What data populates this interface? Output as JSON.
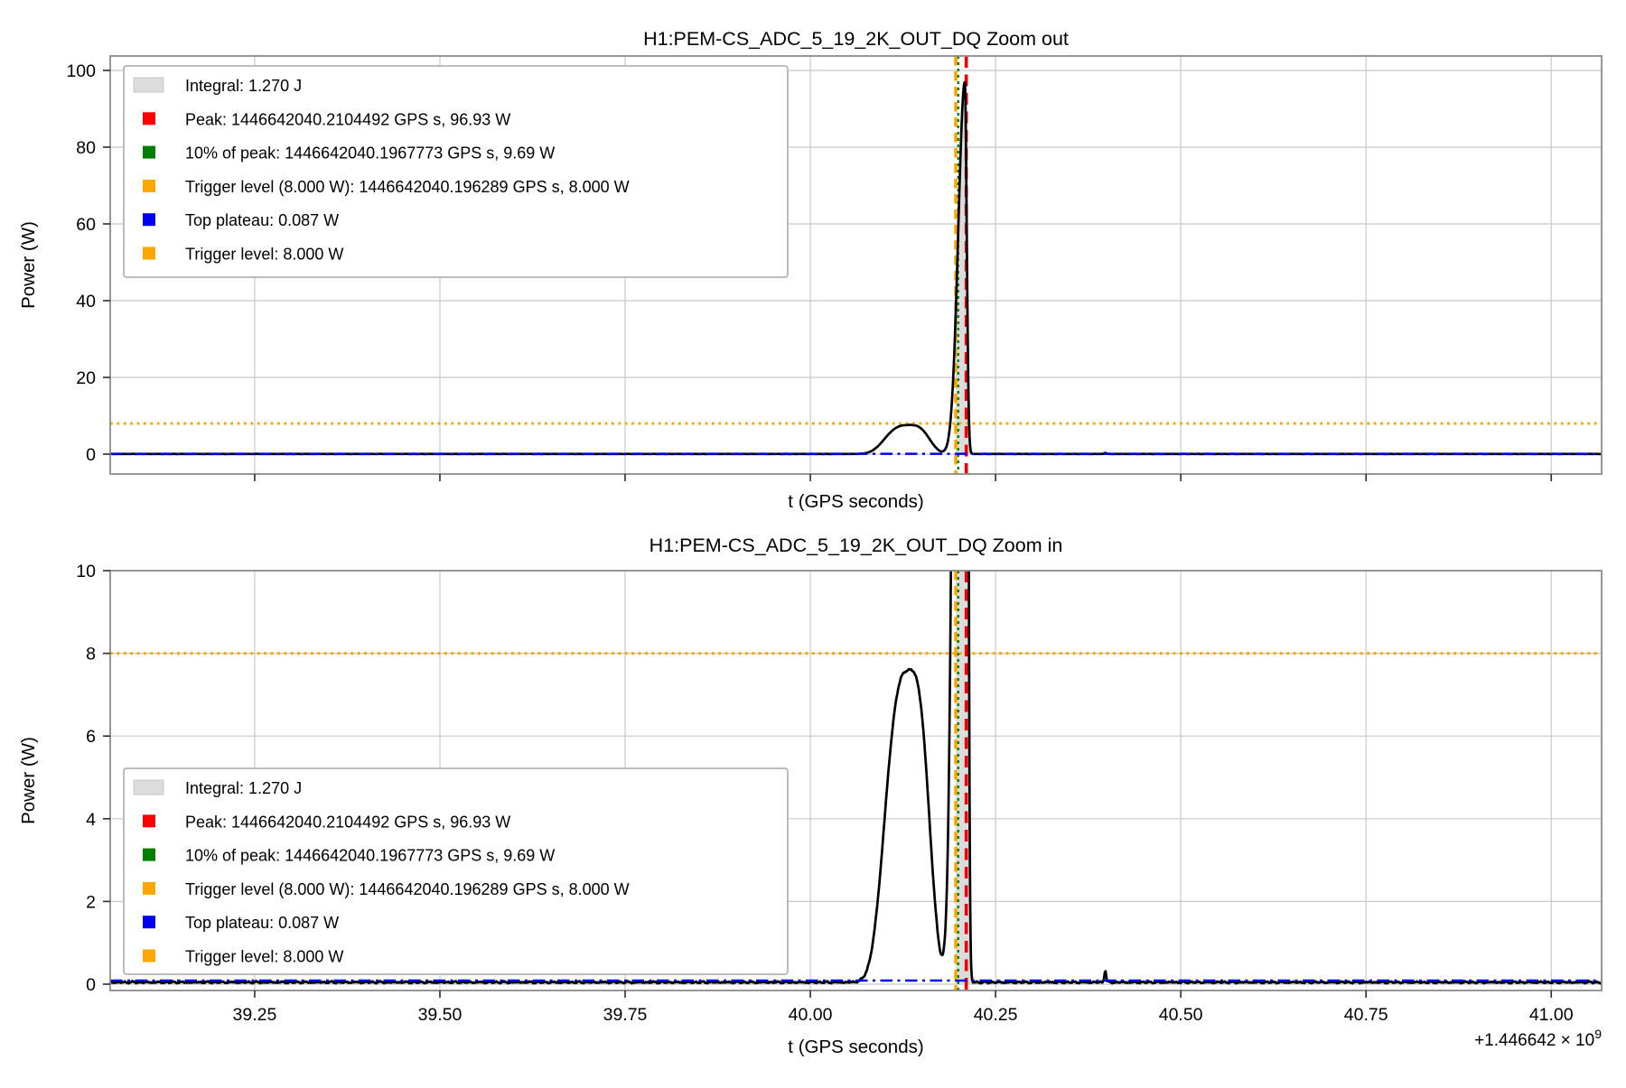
{
  "figure": {
    "background": "#ffffff"
  },
  "chart_data": {
    "type": "line",
    "channel": "H1:PEM-CS_ADC_5_19_2K_OUT_DQ",
    "x_offset": "+1.446642 × 10^9",
    "x_offset_parts": {
      "mantissa": "+1.446642 × 10",
      "exponent": "9"
    },
    "panels": [
      {
        "id": "zoom-out",
        "title": "H1:PEM-CS_ADC_5_19_2K_OUT_DQ Zoom out",
        "xlabel": "t (GPS seconds)",
        "ylabel": "Power (W)",
        "xlim": [
          39.055,
          41.068
        ],
        "ylim": [
          -5.18,
          103.76
        ],
        "xticks": [
          39.25,
          39.5,
          39.75,
          40.0,
          40.25,
          40.5,
          40.75,
          41.0
        ],
        "xtick_labels": [
          "39.25",
          "39.50",
          "39.75",
          "40.00",
          "40.25",
          "40.50",
          "40.75",
          "41.00"
        ],
        "show_xtick_labels": false,
        "yticks": [
          0,
          20,
          40,
          60,
          80,
          100
        ],
        "ytick_labels": [
          "0",
          "20",
          "40",
          "60",
          "80",
          "100"
        ],
        "grid": true,
        "legend_position": "upper left",
        "show_offset_text": false
      },
      {
        "id": "zoom-in",
        "title": "H1:PEM-CS_ADC_5_19_2K_OUT_DQ Zoom in",
        "xlabel": "t (GPS seconds)",
        "ylabel": "Power (W)",
        "xlim": [
          39.055,
          41.068
        ],
        "ylim": [
          -0.153,
          10.0
        ],
        "xticks": [
          39.25,
          39.5,
          39.75,
          40.0,
          40.25,
          40.5,
          40.75,
          41.0
        ],
        "xtick_labels": [
          "39.25",
          "39.50",
          "39.75",
          "40.00",
          "40.25",
          "40.50",
          "40.75",
          "41.00"
        ],
        "show_xtick_labels": true,
        "yticks": [
          0,
          2,
          4,
          6,
          8,
          10
        ],
        "ytick_labels": [
          "0",
          "2",
          "4",
          "6",
          "8",
          "10"
        ],
        "grid": true,
        "legend_position": "lower left",
        "show_offset_text": true
      }
    ],
    "legend": {
      "entries": [
        {
          "label": "Integral: 1.270 J",
          "color": "#dcdcdc",
          "kind": "patch"
        },
        {
          "label": "Peak: 1446642040.2104492 GPS s, 96.93 W",
          "color": "#ff0000",
          "kind": "square"
        },
        {
          "label": "10% of peak: 1446642040.1967773 GPS s, 9.69 W",
          "color": "#007d00",
          "kind": "square"
        },
        {
          "label": "Trigger level (8.000 W): 1446642040.196289 GPS s, 8.000 W",
          "color": "#ffa500",
          "kind": "square"
        },
        {
          "label": "Top plateau: 0.087 W",
          "color": "#0000ee",
          "kind": "square"
        },
        {
          "label": "Trigger level: 8.000 W",
          "color": "#ffa500",
          "kind": "square"
        }
      ]
    },
    "annotations": {
      "peak": {
        "t_gps": 1446642040.2104492,
        "t_rel": 40.2104492,
        "power_w": 96.93,
        "color": "#f20000",
        "style": "dashed-vline"
      },
      "ten_pct_of_peak": {
        "t_gps": 1446642040.1967773,
        "t_rel": 40.1967773,
        "power_w": 9.69,
        "color": "#007d00",
        "style": "dotted-vline"
      },
      "trigger_cross": {
        "t_gps": 1446642040.196289,
        "t_rel": 40.196289,
        "power_w": 8.0,
        "color": "#ffa500",
        "style": "dashed-vline"
      },
      "trigger_level_hline_w": 8.0,
      "top_plateau_hline_w": 0.087,
      "integral_j": 1.27,
      "integral_fill_t": [
        40.196289,
        40.2185
      ]
    },
    "curve_model": {
      "baseline_w": 0.05,
      "precursor_bump": {
        "center": 40.134,
        "peak_w": 7.55,
        "sigma_left": 0.031,
        "sigma_right": 0.0245,
        "shape_power": 3
      },
      "main_peak": {
        "center": 40.2085,
        "peak_w": 96.88,
        "sigma_left": 0.0088,
        "sigma_right": 0.0026,
        "shape_power": 2
      },
      "minor_spike": {
        "center": 40.398,
        "peak_w": 0.3,
        "sigma": 0.0012
      }
    },
    "key_points": [
      {
        "t_rel": 40.134,
        "power_w": 7.6,
        "desc": "precursor bump apex"
      },
      {
        "t_rel": 40.2104,
        "power_w": 96.93,
        "desc": "main peak"
      },
      {
        "t_rel": 40.398,
        "power_w": 0.3,
        "desc": "minor spike on baseline"
      }
    ],
    "colors": {
      "curve": "#000000",
      "grid": "#c8c8c8",
      "spine": "#8a8a8a",
      "orange": "#ffa500",
      "red": "#f20000",
      "green": "#007d00",
      "blue": "#0000ee",
      "integral_fill": "#dcdcdc"
    }
  }
}
